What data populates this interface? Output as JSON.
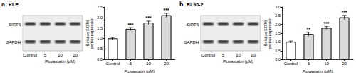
{
  "panels": [
    {
      "label": "a",
      "cell_line": "KLE",
      "blot": {
        "proteins": [
          "SIRT6",
          "GAPDH"
        ],
        "lanes": [
          "Control",
          "5",
          "10",
          "20"
        ],
        "treatment": "Fluvastatin (μM)"
      }
    },
    {
      "label": "b",
      "cell_line": "RL95-2",
      "blot": {
        "proteins": [
          "SIRT6",
          "GAPDH"
        ],
        "lanes": [
          "Control",
          "5",
          "10",
          "20"
        ],
        "treatment": "Fluvastatin (μM)"
      }
    }
  ],
  "chart_data": [
    {
      "type": "bar",
      "categories": [
        "Control",
        "5",
        "10",
        "20"
      ],
      "values": [
        1.0,
        1.45,
        1.75,
        2.1
      ],
      "errors": [
        0.05,
        0.07,
        0.08,
        0.1
      ],
      "annotations": [
        null,
        "***",
        "***",
        "***"
      ],
      "colors": [
        "#ffffff",
        "#d9d9d9",
        "#d9d9d9",
        "#d9d9d9"
      ],
      "xlabel": "Fluvastatin (μM)",
      "ylabel": "Relative SIRT6\nprotein expression",
      "ylim": [
        0,
        2.5
      ],
      "yticks": [
        {
          "value": 0,
          "label": "0.0"
        },
        0.5,
        {
          "value": 1,
          "label": "1.0"
        },
        1.5,
        {
          "value": 2,
          "label": "2.0"
        },
        2.5
      ]
    },
    {
      "type": "bar",
      "categories": [
        "Control",
        "5",
        "10",
        "20"
      ],
      "values": [
        1.0,
        1.45,
        1.8,
        2.4
      ],
      "errors": [
        0.05,
        0.1,
        0.08,
        0.12
      ],
      "annotations": [
        null,
        "**",
        "***",
        "***"
      ],
      "colors": [
        "#ffffff",
        "#d9d9d9",
        "#d9d9d9",
        "#d9d9d9"
      ],
      "xlabel": "Fluvastatin (μM)",
      "ylabel": "Relative SIRT6\nprotein expression",
      "ylim": [
        0,
        3
      ],
      "yticks": [
        {
          "value": 0,
          "label": "0.0"
        },
        0.5,
        {
          "value": 1,
          "label": "1.0"
        },
        1.5,
        {
          "value": 2,
          "label": "2.0"
        },
        2.5,
        {
          "value": 3,
          "label": "3.0"
        }
      ]
    }
  ]
}
